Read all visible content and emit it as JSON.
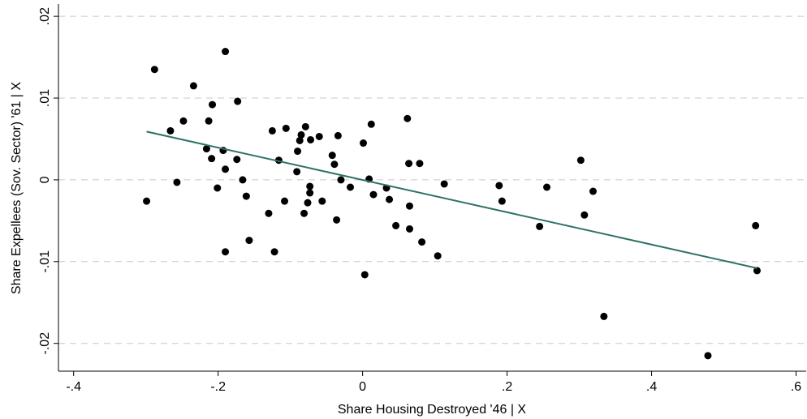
{
  "chart_data": {
    "type": "scatter",
    "xlabel": "Share Housing Destroyed '46 | X",
    "ylabel": "Share Expellees (Sov. Sector) '61 | X",
    "xlim": [
      -0.421,
      0.614
    ],
    "ylim": [
      -0.0234,
      0.0215
    ],
    "xticks": [
      {
        "value": -0.4,
        "label": "-.4"
      },
      {
        "value": -0.2,
        "label": "-.2"
      },
      0,
      {
        "value": 0.2,
        "label": ".2"
      },
      {
        "value": 0.4,
        "label": ".4"
      },
      {
        "value": 0.6,
        "label": ".6"
      }
    ],
    "yticks": [
      {
        "value": -0.02,
        "label": "-.02"
      },
      {
        "value": -0.01,
        "label": "-.01"
      },
      0,
      {
        "value": 0.01,
        "label": ".01"
      },
      {
        "value": 0.02,
        "label": ".02"
      }
    ],
    "grid": true,
    "series": [
      {
        "color": "#000000",
        "x": [
          -0.299,
          -0.288,
          -0.266,
          -0.257,
          -0.248,
          -0.234,
          -0.216,
          -0.209,
          -0.193,
          -0.213,
          -0.208,
          -0.19,
          -0.201,
          -0.19,
          -0.19,
          -0.174,
          -0.173,
          -0.166,
          -0.161,
          -0.157,
          -0.13,
          -0.125,
          -0.122,
          -0.116,
          -0.108,
          -0.106,
          -0.091,
          -0.09,
          -0.087,
          -0.085,
          -0.081,
          -0.079,
          -0.076,
          -0.073,
          -0.073,
          -0.072,
          -0.06,
          -0.056,
          -0.042,
          -0.039,
          -0.036,
          -0.034,
          -0.03,
          -0.017,
          0.001,
          0.003,
          0.009,
          0.012,
          0.015,
          0.033,
          0.037,
          0.046,
          0.062,
          0.064,
          0.065,
          0.065,
          0.079,
          0.082,
          0.104,
          0.113,
          0.189,
          0.193,
          0.255,
          0.245,
          0.302,
          0.307,
          0.319,
          0.334,
          0.478,
          0.544,
          0.546
        ],
        "values": [
          -0.0026,
          0.0135,
          0.006,
          -0.0003,
          0.0072,
          0.0115,
          0.0038,
          0.0026,
          0.0036,
          0.0072,
          0.0092,
          0.0157,
          -0.001,
          0.0013,
          -0.0088,
          0.0025,
          0.0096,
          0.0,
          -0.002,
          -0.0074,
          -0.0041,
          0.006,
          -0.0088,
          0.0024,
          -0.0026,
          0.0063,
          0.001,
          0.0035,
          0.0048,
          0.0055,
          -0.0041,
          0.0065,
          -0.0028,
          -0.0016,
          -0.0008,
          0.0049,
          0.0053,
          -0.0026,
          0.003,
          0.0019,
          -0.0049,
          0.0054,
          0.0,
          -0.0009,
          0.0045,
          -0.0116,
          0.0001,
          0.0068,
          -0.0018,
          -0.001,
          -0.0024,
          -0.0056,
          0.0075,
          0.002,
          -0.0032,
          -0.006,
          0.002,
          -0.0076,
          -0.0093,
          -0.0005,
          -0.0007,
          -0.0026,
          -0.0009,
          -0.0057,
          0.0024,
          -0.0043,
          -0.0014,
          -0.0167,
          -0.0215,
          -0.0056,
          -0.0111
        ]
      }
    ],
    "fit_line": {
      "color": "#2e7266",
      "x": [
        -0.299,
        0.546
      ],
      "values": [
        0.0059,
        -0.0108
      ]
    }
  }
}
